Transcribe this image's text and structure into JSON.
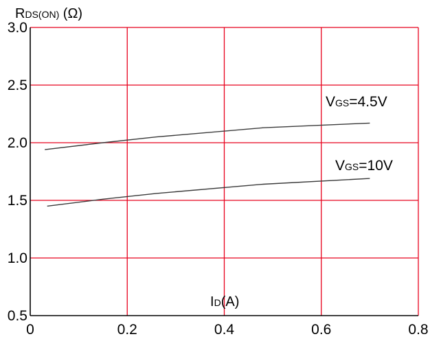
{
  "chart_data": {
    "type": "line",
    "ylabel": {
      "main": "R",
      "sub": "DS(ON)",
      "unit": " (Ω)"
    },
    "xlabel": {
      "main": "I",
      "sub": "D",
      "unit": "(A)"
    },
    "xlim": [
      0,
      0.8
    ],
    "ylim": [
      0.5,
      3.0
    ],
    "xticks": [
      0,
      0.2,
      0.4,
      0.6,
      0.8
    ],
    "xtick_labels": [
      "0",
      "0.2",
      "0.4",
      "0.6",
      "0.8"
    ],
    "yticks": [
      0.5,
      1.0,
      1.5,
      2.0,
      2.5,
      3.0
    ],
    "ytick_labels": [
      "0.5",
      "1.0",
      "1.5",
      "2.0",
      "2.5",
      "3.0"
    ],
    "grid": true,
    "series": [
      {
        "name": "VGS=4.5V",
        "label": {
          "main": "V",
          "sub": "GS",
          "rest": "=4.5V"
        },
        "x": [
          0.03,
          0.15,
          0.26,
          0.48,
          0.7
        ],
        "y": [
          1.94,
          2.0,
          2.05,
          2.13,
          2.17
        ]
      },
      {
        "name": "VGS=10V",
        "label": {
          "main": "V",
          "sub": "GS",
          "rest": "=10V"
        },
        "x": [
          0.035,
          0.15,
          0.26,
          0.48,
          0.7
        ],
        "y": [
          1.45,
          1.51,
          1.56,
          1.64,
          1.69
        ]
      }
    ]
  }
}
